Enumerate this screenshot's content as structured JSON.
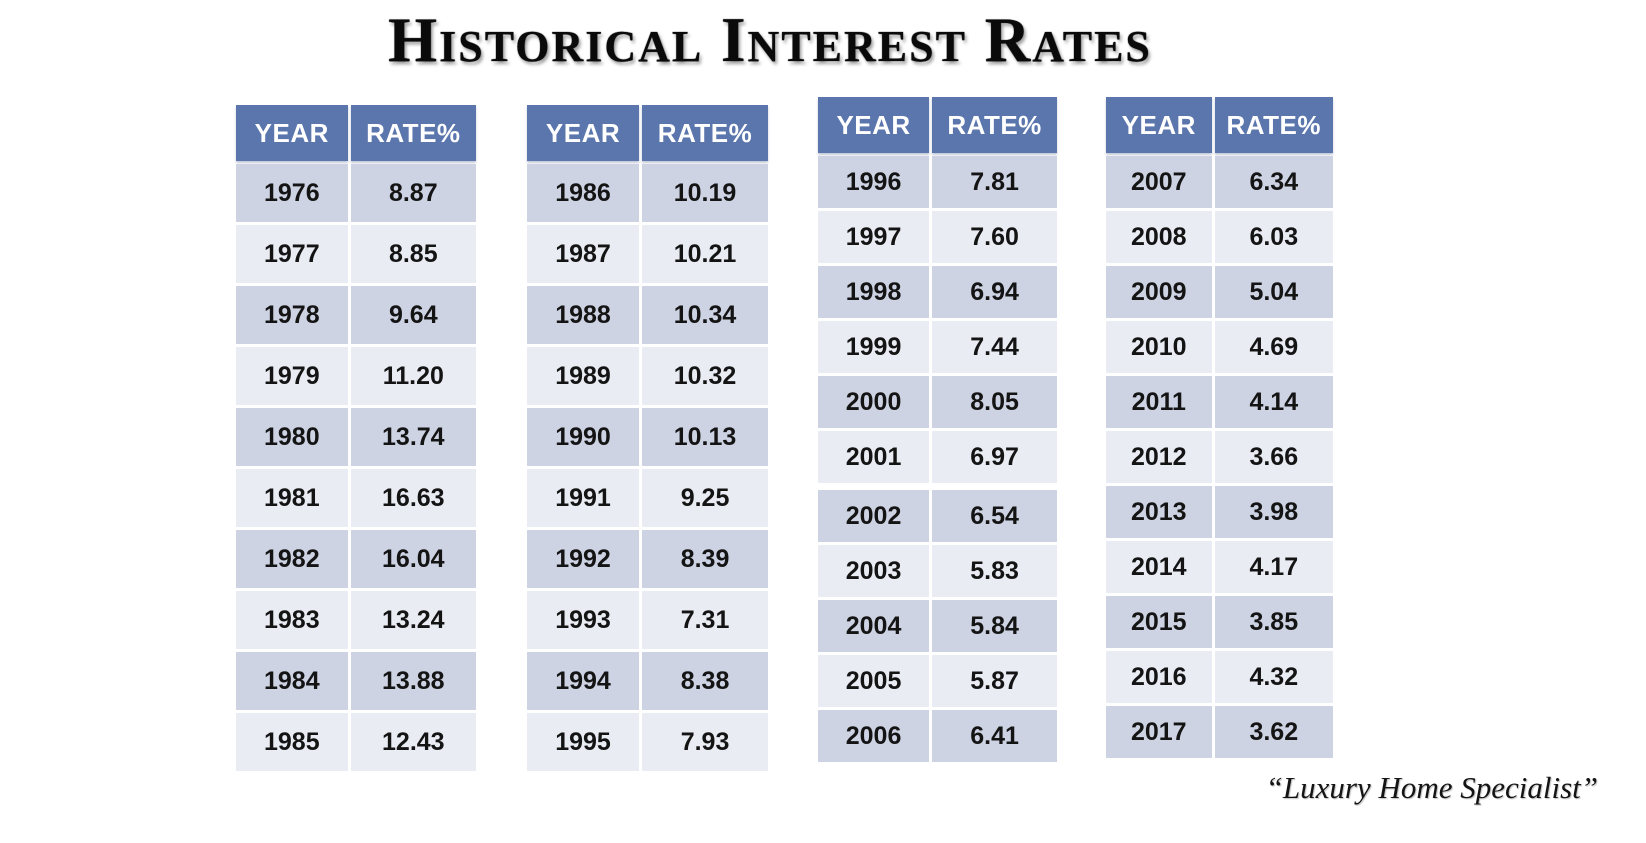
{
  "title": "Historical Interest Rates",
  "footer": {
    "tagline": "“Luxury Home Specialist”"
  },
  "colors": {
    "header_bg": "#5a76ad",
    "header_text": "#ffffff",
    "row_dark": "#cdd3e3",
    "row_light": "#e9ecf3",
    "cell_text": "#141414"
  },
  "chart_data": {
    "type": "table",
    "title": "Historical Interest Rates",
    "columns": [
      "YEAR",
      "RATE%"
    ],
    "tables": [
      {
        "name": "1976-1985",
        "rows": [
          [
            "1976",
            "8.87"
          ],
          [
            "1977",
            "8.85"
          ],
          [
            "1978",
            "9.64"
          ],
          [
            "1979",
            "11.20"
          ],
          [
            "1980",
            "13.74"
          ],
          [
            "1981",
            "16.63"
          ],
          [
            "1982",
            "16.04"
          ],
          [
            "1983",
            "13.24"
          ],
          [
            "1984",
            "13.88"
          ],
          [
            "1985",
            "12.43"
          ]
        ]
      },
      {
        "name": "1986-1995",
        "rows": [
          [
            "1986",
            "10.19"
          ],
          [
            "1987",
            "10.21"
          ],
          [
            "1988",
            "10.34"
          ],
          [
            "1989",
            "10.32"
          ],
          [
            "1990",
            "10.13"
          ],
          [
            "1991",
            "9.25"
          ],
          [
            "1992",
            "8.39"
          ],
          [
            "1993",
            "7.31"
          ],
          [
            "1994",
            "8.38"
          ],
          [
            "1995",
            "7.93"
          ]
        ]
      },
      {
        "name": "1996-2006",
        "rows": [
          [
            "1996",
            "7.81"
          ],
          [
            "1997",
            "7.60"
          ],
          [
            "1998",
            "6.94"
          ],
          [
            "1999",
            "7.44"
          ],
          [
            "2000",
            "8.05"
          ],
          [
            "2001",
            "6.97"
          ],
          [
            "2002",
            "6.54"
          ],
          [
            "2003",
            "5.83"
          ],
          [
            "2004",
            "5.84"
          ],
          [
            "2005",
            "5.87"
          ],
          [
            "2006",
            "6.41"
          ]
        ]
      },
      {
        "name": "2007-2017",
        "rows": [
          [
            "2007",
            "6.34"
          ],
          [
            "2008",
            "6.03"
          ],
          [
            "2009",
            "5.04"
          ],
          [
            "2010",
            "4.69"
          ],
          [
            "2011",
            "4.14"
          ],
          [
            "2012",
            "3.66"
          ],
          [
            "2013",
            "3.98"
          ],
          [
            "2014",
            "4.17"
          ],
          [
            "2015",
            "3.85"
          ],
          [
            "2016",
            "4.32"
          ],
          [
            "2017",
            "3.62"
          ]
        ]
      }
    ]
  }
}
